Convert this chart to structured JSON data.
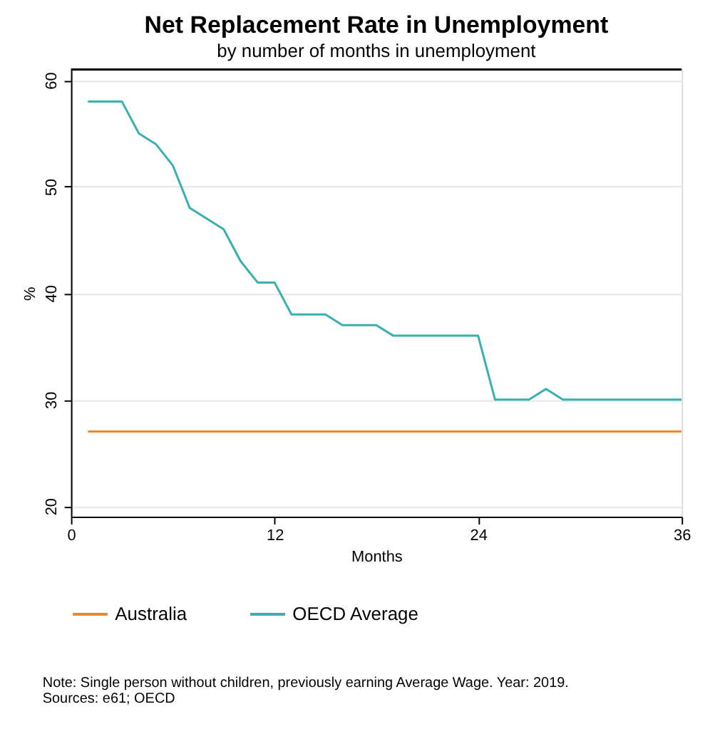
{
  "chart_data": {
    "type": "line",
    "title": "Net Replacement Rate in Unemployment",
    "subtitle": "by number of months in unemployment",
    "xlabel": "Months",
    "ylabel": "%",
    "x": [
      1,
      2,
      3,
      4,
      5,
      6,
      7,
      8,
      9,
      10,
      11,
      12,
      13,
      14,
      15,
      16,
      17,
      18,
      19,
      20,
      21,
      22,
      23,
      24,
      25,
      26,
      27,
      28,
      29,
      30,
      31,
      32,
      33,
      34,
      35,
      36
    ],
    "series": [
      {
        "name": "Australia",
        "color": "#e8892b",
        "values": [
          27,
          27,
          27,
          27,
          27,
          27,
          27,
          27,
          27,
          27,
          27,
          27,
          27,
          27,
          27,
          27,
          27,
          27,
          27,
          27,
          27,
          27,
          27,
          27,
          27,
          27,
          27,
          27,
          27,
          27,
          27,
          27,
          27,
          27,
          27,
          27
        ]
      },
      {
        "name": "OECD Average",
        "color": "#3aafb0",
        "values": [
          58,
          58,
          58,
          55,
          54,
          52,
          48,
          47,
          46,
          43,
          41,
          41,
          38,
          38,
          38,
          37,
          37,
          37,
          36,
          36,
          36,
          36,
          36,
          36,
          30,
          30,
          30,
          31,
          30,
          30,
          30,
          30,
          30,
          30,
          30,
          30
        ]
      }
    ],
    "xlim": [
      0,
      36
    ],
    "xticks": [
      0,
      12,
      24,
      36
    ],
    "ylim": [
      19,
      61
    ],
    "yticks": [
      20,
      30,
      40,
      50,
      60
    ],
    "grid": "y",
    "legend": "bottom",
    "marker": "none",
    "line_style": "solid",
    "annotations": [
      "Note: Single person without children, previously earning Average Wage. Year: 2019.",
      "Sources: e61; OECD"
    ]
  }
}
